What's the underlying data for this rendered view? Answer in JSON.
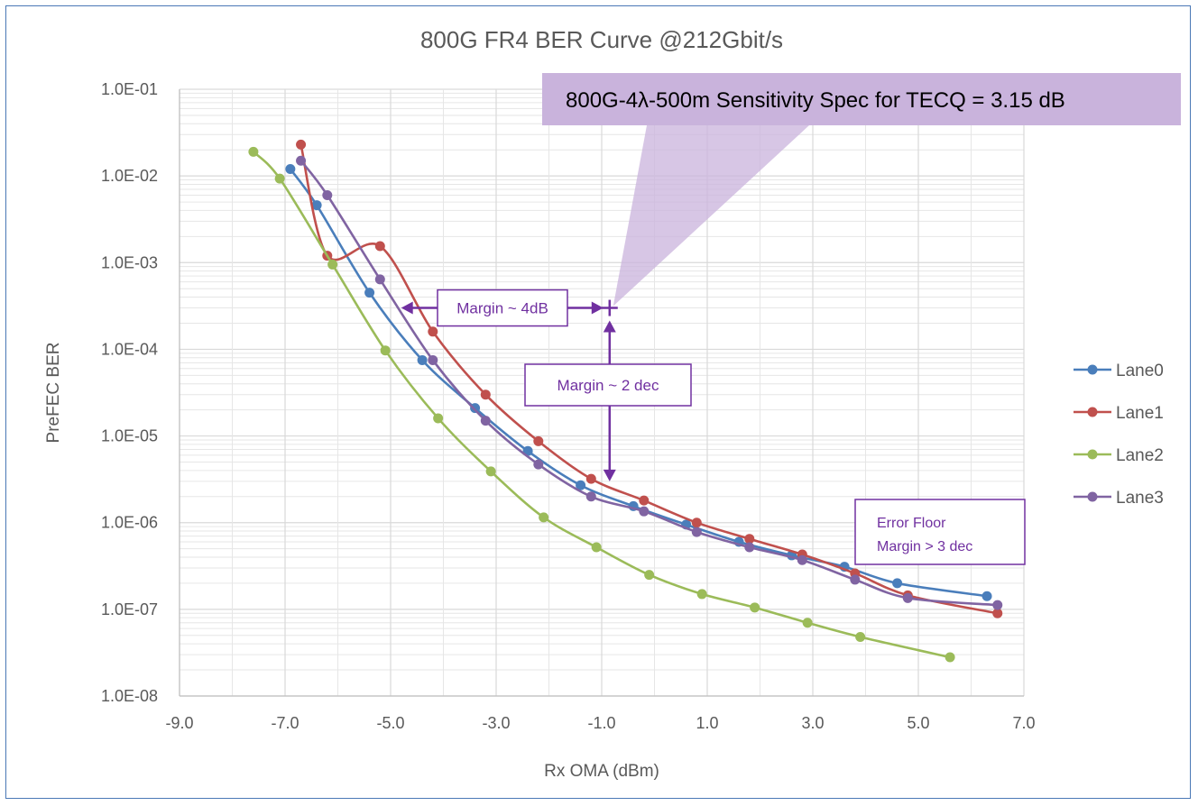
{
  "chart_data": {
    "type": "line",
    "title": "800G FR4 BER Curve @212Gbit/s",
    "xlabel": "Rx OMA (dBm)",
    "ylabel": "PreFEC BER",
    "xlim": [
      -9.0,
      7.0
    ],
    "ylim": [
      1e-08,
      0.1
    ],
    "y_scale": "log",
    "grid": true,
    "legend_position": "right",
    "x_tick_labels": [
      "-9.0",
      "-7.0",
      "-5.0",
      "-3.0",
      "-1.0",
      "1.0",
      "3.0",
      "5.0",
      "7.0"
    ],
    "y_tick_labels": [
      "1.0E-08",
      "1.0E-07",
      "1.0E-06",
      "1.0E-05",
      "1.0E-04",
      "1.0E-03",
      "1.0E-02",
      "1.0E-01"
    ],
    "series": [
      {
        "name": "Lane0",
        "color": "#4a7ebb",
        "x": [
          -6.9,
          -6.4,
          -5.4,
          -4.4,
          -3.4,
          -2.4,
          -1.4,
          -0.4,
          0.6,
          1.6,
          2.6,
          3.6,
          4.6,
          6.3
        ],
        "y": [
          0.012,
          0.0046,
          0.00045,
          7.5e-05,
          2.1e-05,
          6.7e-06,
          2.7e-06,
          1.55e-06,
          9.5e-07,
          6e-07,
          4.2e-07,
          3.1e-07,
          2e-07,
          1.42e-07
        ]
      },
      {
        "name": "Lane1",
        "color": "#c0504d",
        "x": [
          -6.7,
          -6.2,
          -5.2,
          -4.2,
          -3.2,
          -2.2,
          -1.2,
          -0.2,
          0.8,
          1.8,
          2.8,
          3.8,
          4.8,
          6.5
        ],
        "y": [
          0.023,
          0.0012,
          0.00155,
          0.00016,
          3e-05,
          8.7e-06,
          3.2e-06,
          1.8e-06,
          1e-06,
          6.5e-07,
          4.3e-07,
          2.6e-07,
          1.45e-07,
          9e-08
        ]
      },
      {
        "name": "Lane2",
        "color": "#9bbb59",
        "x": [
          -7.6,
          -7.1,
          -6.1,
          -5.1,
          -4.1,
          -3.1,
          -2.1,
          -1.1,
          -0.1,
          0.9,
          1.9,
          2.9,
          3.9,
          5.6
        ],
        "y": [
          0.019,
          0.0093,
          0.00095,
          9.7e-05,
          1.6e-05,
          3.9e-06,
          1.15e-06,
          5.2e-07,
          2.5e-07,
          1.5e-07,
          1.05e-07,
          7e-08,
          4.8e-08,
          2.8e-08
        ]
      },
      {
        "name": "Lane3",
        "color": "#8064a2",
        "x": [
          -6.7,
          -6.2,
          -5.2,
          -4.2,
          -3.2,
          -2.2,
          -1.2,
          -0.2,
          0.8,
          1.8,
          2.8,
          3.8,
          4.8,
          6.5
        ],
        "y": [
          0.015,
          0.006,
          0.00064,
          7.5e-05,
          1.5e-05,
          4.7e-06,
          2e-06,
          1.35e-06,
          7.8e-07,
          5.2e-07,
          3.7e-07,
          2.2e-07,
          1.35e-07,
          1.12e-07
        ]
      }
    ],
    "annotations": {
      "spec_callout": "800G-4λ-500m Sensitivity Spec for TECQ = 3.15 dB",
      "margin_db": "Margin ~ 4dB",
      "margin_dec": "Margin ~ 2 dec",
      "error_floor_line1": "Error Floor",
      "error_floor_line2": "Margin > 3 dec",
      "spec_point": {
        "x": -0.85,
        "y": 0.0003
      },
      "margin_db_span": [
        -4.8,
        -0.85
      ],
      "margin_dec_span": [
        0.0003,
        3e-06
      ]
    },
    "colors": {
      "accent": "#7030a0",
      "callout_fill": "#c9b3dc",
      "grid": "#d9d9d9",
      "axis_text": "#595959",
      "frame": "#4a78b6"
    }
  }
}
